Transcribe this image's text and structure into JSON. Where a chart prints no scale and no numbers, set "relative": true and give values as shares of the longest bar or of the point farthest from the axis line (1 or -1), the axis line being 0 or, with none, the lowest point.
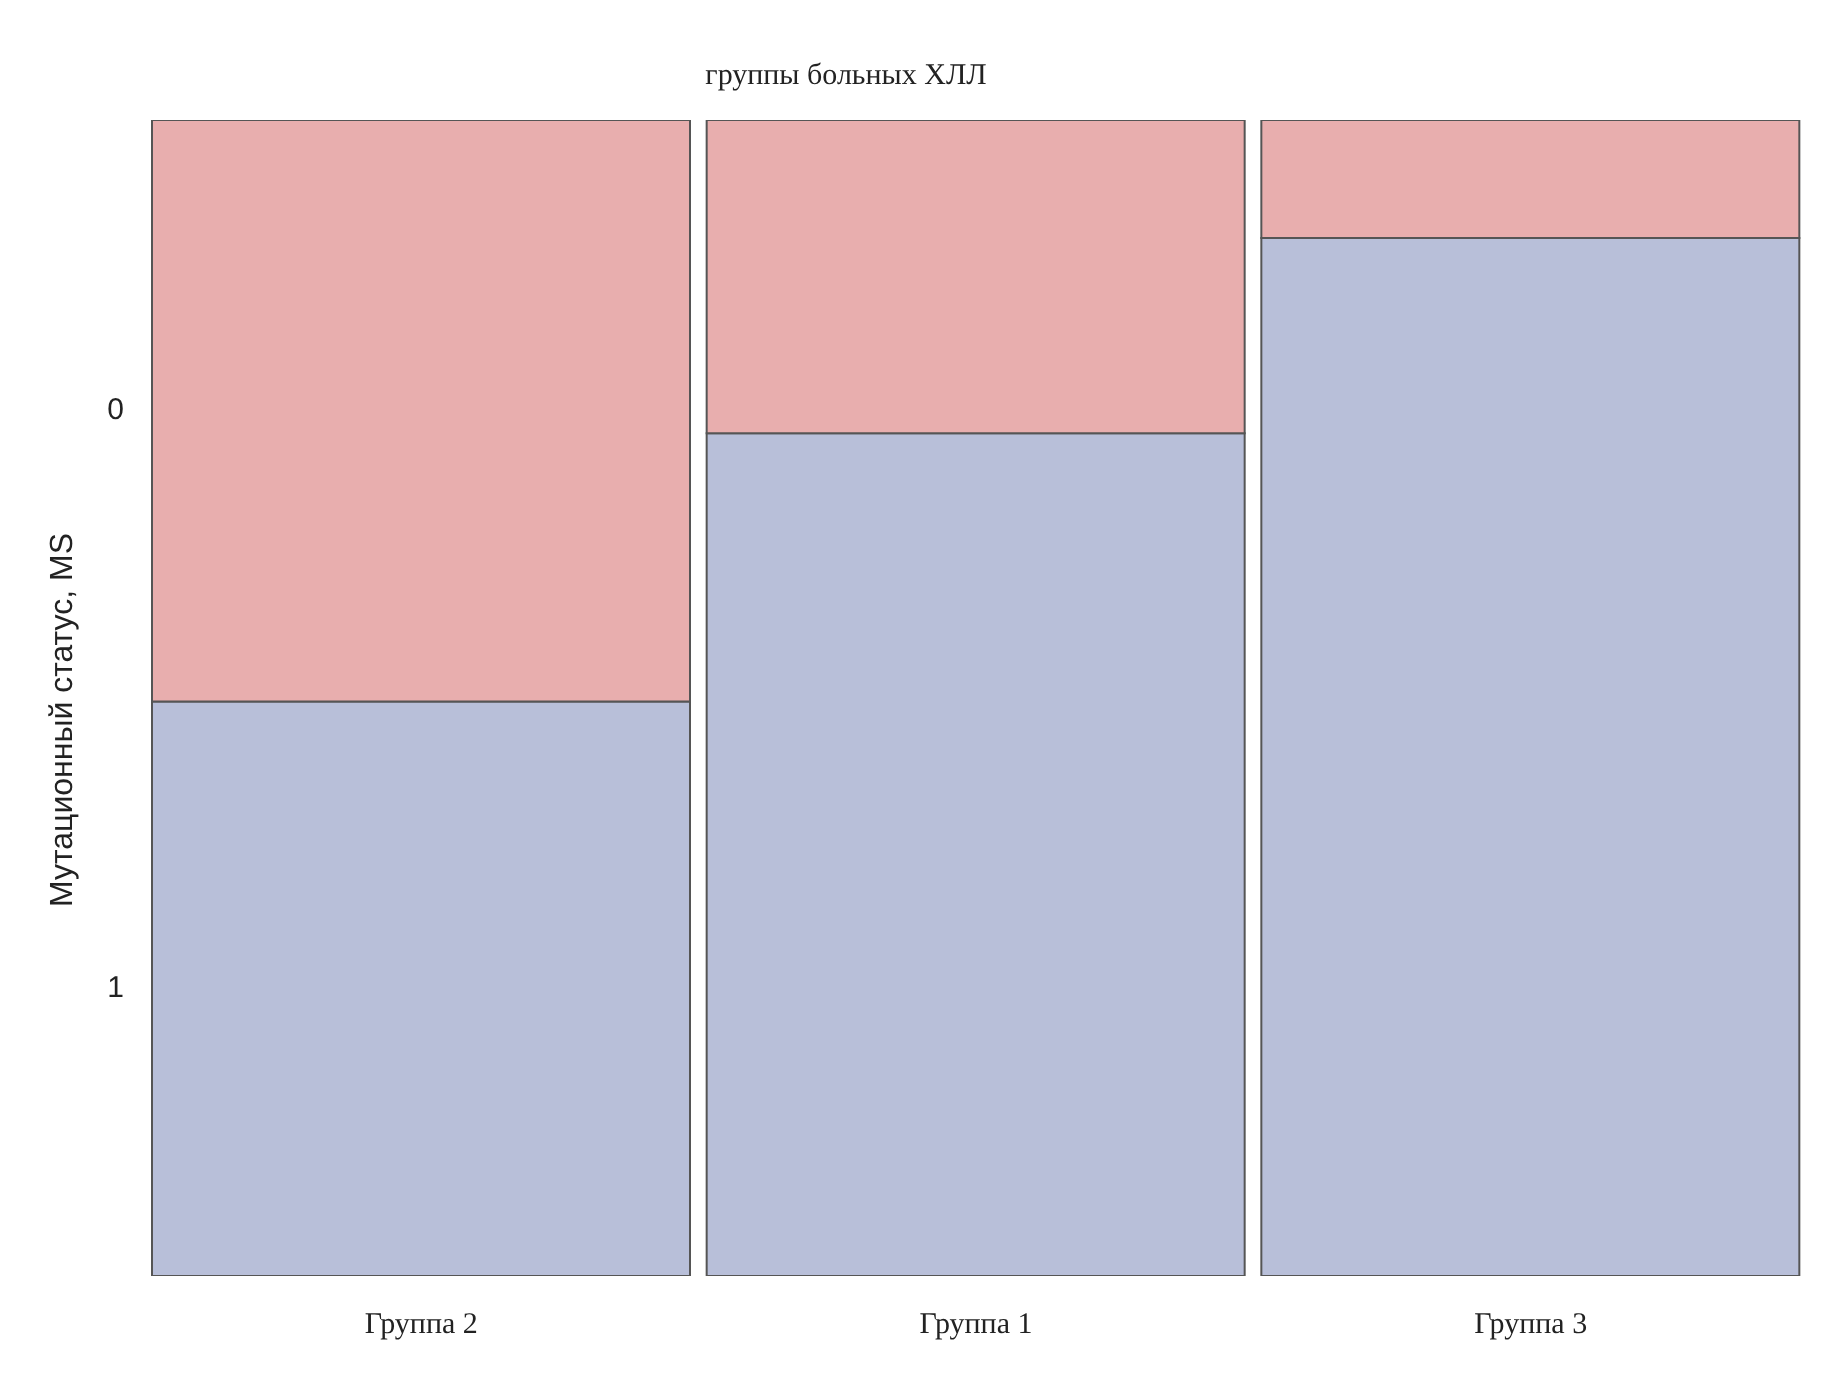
{
  "chart_data": {
    "type": "bar",
    "title": "группы больных ХЛЛ",
    "ylabel": "Мутационный статус, MS",
    "stacked": true,
    "relative": true,
    "categories": [
      "Группа 2",
      "Группа 1",
      "Группа 3"
    ],
    "series": [
      {
        "name": "1",
        "color": "#b8bfd9",
        "values": [
          0.497,
          0.729,
          0.898
        ]
      },
      {
        "name": "0",
        "color": "#e8aeae",
        "values": [
          0.503,
          0.271,
          0.102
        ]
      }
    ]
  }
}
